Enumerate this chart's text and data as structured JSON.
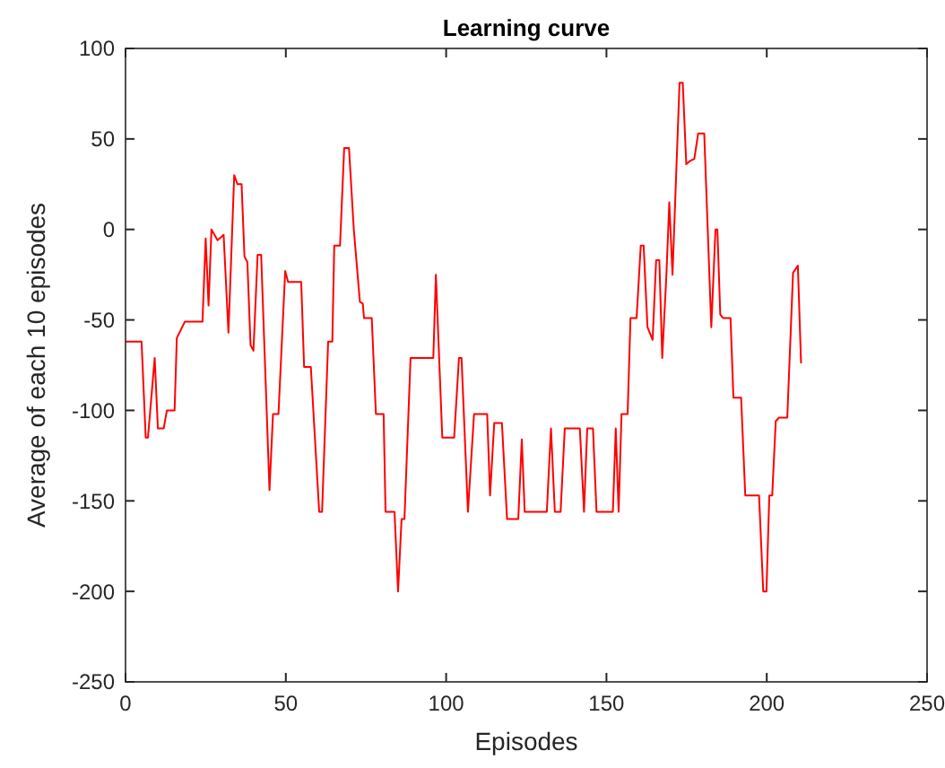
{
  "chart_data": {
    "type": "line",
    "title": "Learning curve",
    "xlabel": "Episodes",
    "ylabel": "Average of each 10 episodes",
    "xlim": [
      0,
      250
    ],
    "xticks": [
      0,
      50,
      100,
      150,
      200,
      250
    ],
    "ylim": [
      -250,
      100
    ],
    "yticks": [
      -250,
      -200,
      -150,
      -100,
      -50,
      0,
      50,
      100
    ],
    "grid": false,
    "marker": "none",
    "line_style": "solid",
    "series": [
      {
        "color": "#ff0000",
        "x": [
          0,
          5,
          6.3,
          7,
          9.1,
          10.1,
          11.9,
          12.9,
          15.3,
          16,
          18.5,
          24,
          25,
          25.9,
          26.8,
          28.7,
          30.6,
          32.1,
          33.9,
          34.9,
          36.2,
          37.1,
          38,
          39,
          39.9,
          41.2,
          42.3,
          44.9,
          46,
          47.7,
          49.8,
          50.7,
          54.8,
          55.7,
          57.8,
          60.4,
          61.3,
          63.2,
          64.5,
          65.1,
          66.9,
          68.2,
          69.7,
          71.2,
          73.1,
          74,
          74.4,
          76.8,
          78.1,
          80.5,
          81.1,
          83.9,
          85,
          86.1,
          87,
          88.9,
          96,
          96.8,
          98.8,
          102.5,
          104,
          104.8,
          106.8,
          108.7,
          112.8,
          113.7,
          115,
          117.4,
          119,
          122.5,
          123.6,
          124.5,
          131.4,
          132.7,
          133.9,
          135.7,
          137,
          141.7,
          143,
          144,
          145.8,
          146.9,
          152,
          152.9,
          153.8,
          154.7,
          156.6,
          157.5,
          159.4,
          160.7,
          161.6,
          162.8,
          164.4,
          165.5,
          166.5,
          167.4,
          168.7,
          169.6,
          170.6,
          172.8,
          173.8,
          174.9,
          176.2,
          177.4,
          178.6,
          180.5,
          182.7,
          184,
          184.6,
          185.5,
          186.4,
          188.7,
          189.6,
          192,
          193.3,
          197.6,
          198.9,
          199.9,
          200.8,
          201.7,
          202.8,
          203.8,
          206.4,
          208.2,
          209.7,
          210.7
        ],
        "values": [
          -62,
          -62,
          -115,
          -115,
          -71,
          -110,
          -110,
          -100,
          -100,
          -60,
          -51,
          -51,
          -5,
          -42,
          0,
          -6,
          -3,
          -57,
          30,
          25,
          25,
          -15,
          -18,
          -64,
          -67,
          -14,
          -14,
          -144,
          -102,
          -102,
          -23,
          -29,
          -29,
          -76,
          -76,
          -156,
          -156,
          -62,
          -62,
          -9,
          -9,
          45,
          45,
          0,
          -40,
          -41,
          -49,
          -49,
          -102,
          -102,
          -156,
          -156,
          -200,
          -160,
          -160,
          -71,
          -71,
          -25,
          -115,
          -115,
          -71,
          -71,
          -156,
          -102,
          -102,
          -147,
          -107,
          -107,
          -160,
          -160,
          -116,
          -156,
          -156,
          -110,
          -156,
          -156,
          -110,
          -110,
          -156,
          -110,
          -110,
          -156,
          -156,
          -110,
          -156,
          -102,
          -102,
          -49,
          -49,
          -9,
          -9,
          -54,
          -61,
          -17,
          -17,
          -71,
          -25,
          15,
          -25,
          81,
          81,
          36,
          38,
          39,
          53,
          53,
          -54,
          0,
          0,
          -47,
          -49,
          -49,
          -93,
          -93,
          -147,
          -147,
          -200,
          -200,
          -147,
          -147,
          -106,
          -104,
          -104,
          -24,
          -20,
          -74
        ]
      }
    ]
  }
}
